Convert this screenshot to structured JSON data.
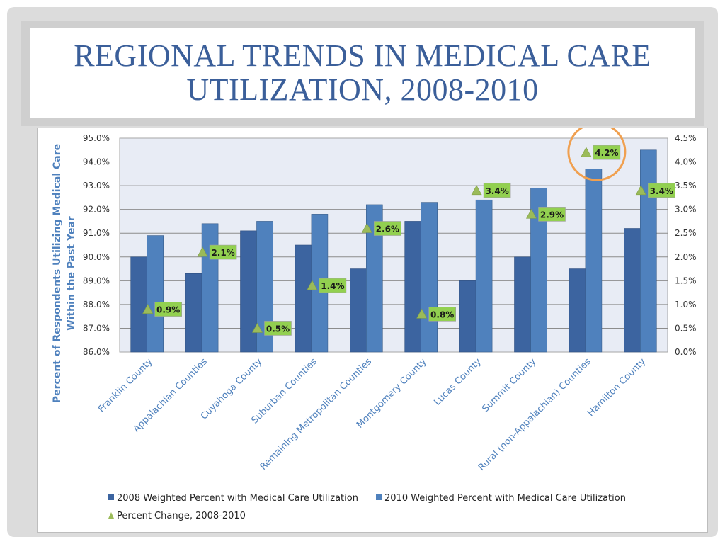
{
  "slide": {
    "title_line1": "REGIONAL TRENDS IN MEDICAL CARE",
    "title_line2": "UTILIZATION, 2008-2010"
  },
  "colors": {
    "bar_2008": "#3c64a0",
    "bar_2010": "#4f81bd",
    "marker": "#9bbb59",
    "label_bg": "#92d050",
    "title": "#3b5f9a",
    "highlight_circle": "#f0a050",
    "plot_bg": "#e8ecf5"
  },
  "chart_data": {
    "type": "bar",
    "y_axis_label_line1": "Percent of Respondents Utilizing Medical Care",
    "y_axis_label_line2": "Within the Past Year",
    "categories": [
      "Franklin County",
      "Appalachian Counties",
      "Cuyahoga County",
      "Suburban Counties",
      "Remaining Metropolitan Counties",
      "Montgomery County",
      "Lucas County",
      "Summit County",
      "Rural (non-Appalachian) Counties",
      "Hamilton County"
    ],
    "series": [
      {
        "name": "2008 Weighted Percent with Medical Care Utilization",
        "axis": "left",
        "values": [
          90.0,
          89.3,
          91.1,
          90.5,
          89.5,
          91.5,
          89.0,
          90.0,
          89.5,
          91.2
        ]
      },
      {
        "name": "2010 Weighted Percent with Medical Care Utilization",
        "axis": "left",
        "values": [
          90.9,
          91.4,
          91.5,
          91.8,
          92.2,
          92.3,
          92.4,
          92.9,
          93.7,
          94.5
        ]
      },
      {
        "name": "Percent Change, 2008-2010",
        "axis": "right",
        "kind": "marker",
        "values": [
          0.9,
          2.1,
          0.5,
          1.4,
          2.6,
          0.8,
          3.4,
          2.9,
          4.2,
          3.4
        ],
        "labels": [
          "0.9%",
          "2.1%",
          "0.5%",
          "1.4%",
          "2.6%",
          "0.8%",
          "3.4%",
          "2.9%",
          "4.2%",
          "3.4%"
        ]
      }
    ],
    "ylim": [
      86.0,
      95.0
    ],
    "y2lim": [
      0.0,
      4.5
    ],
    "y_ticks": [
      "86.0%",
      "87.0%",
      "88.0%",
      "89.0%",
      "90.0%",
      "91.0%",
      "92.0%",
      "93.0%",
      "94.0%",
      "95.0%"
    ],
    "y2_ticks": [
      "0.0%",
      "0.5%",
      "1.0%",
      "1.5%",
      "2.0%",
      "2.5%",
      "3.0%",
      "3.5%",
      "4.0%",
      "4.5%"
    ],
    "highlighted_category": "Rural (non-Appalachian) Counties",
    "legend_position": "bottom",
    "grid": true
  }
}
